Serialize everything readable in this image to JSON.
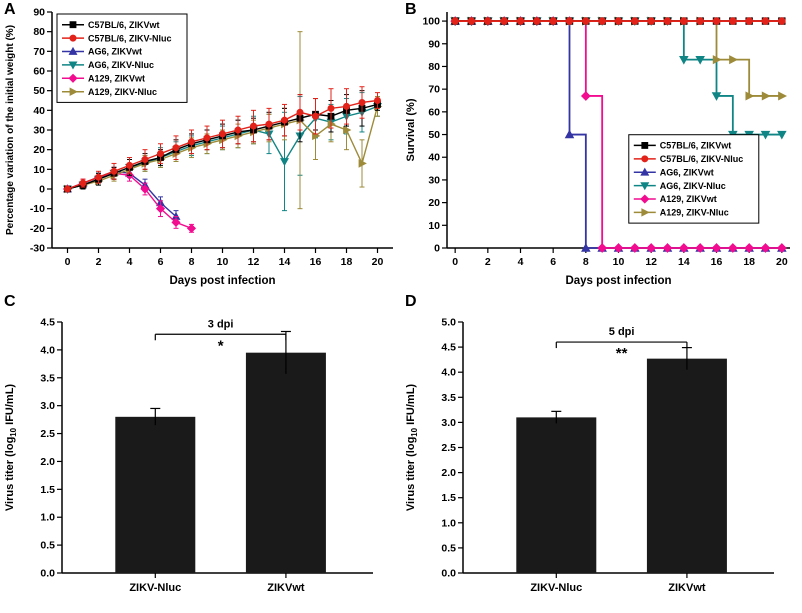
{
  "figure": {
    "panels": [
      {
        "label": "A"
      },
      {
        "label": "B"
      },
      {
        "label": "C"
      },
      {
        "label": "D"
      }
    ]
  },
  "chart_data": [
    {
      "id": "A",
      "type": "line",
      "xlabel": "Days post infection",
      "ylabel": "Percentage variation of the initial weight (%)",
      "xlim": [
        -1,
        21
      ],
      "ylim": [
        -30,
        90
      ],
      "xticks": [
        0,
        2,
        4,
        6,
        8,
        10,
        12,
        14,
        16,
        18,
        20
      ],
      "yticks": [
        -30,
        -20,
        -10,
        0,
        10,
        20,
        30,
        40,
        50,
        60,
        70,
        80,
        90
      ],
      "legend_position": "top-left",
      "series": [
        {
          "name": "C57BL/6, ZIKVwt",
          "color": "#000000",
          "marker": "square",
          "days": [
            0,
            1,
            2,
            3,
            4,
            5,
            6,
            7,
            8,
            9,
            10,
            11,
            12,
            13,
            14,
            15,
            16,
            17,
            18,
            19,
            20
          ],
          "values": [
            0,
            2,
            5,
            8,
            11,
            14,
            16,
            20,
            23,
            25,
            27,
            29,
            30,
            32,
            34,
            36,
            38,
            37,
            40,
            41,
            43
          ],
          "errors": [
            1,
            2,
            3,
            3,
            4,
            4,
            4,
            5,
            5,
            5,
            6,
            6,
            6,
            7,
            7,
            12,
            8,
            8,
            8,
            9,
            3
          ]
        },
        {
          "name": "C57BL/6, ZIKV-Nluc",
          "color": "#e2231a",
          "marker": "circle",
          "days": [
            0,
            1,
            2,
            3,
            4,
            5,
            6,
            7,
            8,
            9,
            10,
            11,
            12,
            13,
            14,
            15,
            16,
            17,
            18,
            19,
            20
          ],
          "values": [
            0,
            3,
            6,
            9,
            12,
            15,
            18,
            21,
            24,
            26,
            28,
            30,
            32,
            33,
            35,
            39,
            37,
            41,
            42,
            44,
            45
          ],
          "errors": [
            1,
            2,
            3,
            4,
            4,
            5,
            5,
            6,
            6,
            6,
            7,
            7,
            8,
            8,
            8,
            9,
            9,
            10,
            9,
            8,
            4
          ]
        },
        {
          "name": "AG6, ZIKVwt",
          "color": "#3434a4",
          "marker": "triangle-up",
          "days": [
            0,
            1,
            2,
            3,
            4,
            5,
            6,
            7
          ],
          "values": [
            0,
            3,
            6,
            9,
            8,
            2,
            -7,
            -14
          ],
          "errors": [
            1,
            1,
            2,
            2,
            2,
            3,
            3,
            3
          ]
        },
        {
          "name": "AG6, ZIKV-Nluc",
          "color": "#108585",
          "marker": "triangle-down",
          "days": [
            0,
            1,
            2,
            3,
            4,
            5,
            6,
            7,
            8,
            9,
            10,
            11,
            12,
            13,
            14,
            15,
            16,
            17,
            18,
            19,
            20
          ],
          "values": [
            0,
            2,
            5,
            8,
            11,
            13,
            16,
            19,
            22,
            24,
            26,
            28,
            30,
            28,
            14,
            27,
            36,
            34,
            37,
            39,
            42
          ],
          "errors": [
            1,
            2,
            3,
            3,
            4,
            4,
            5,
            5,
            5,
            6,
            6,
            7,
            7,
            10,
            25,
            20,
            10,
            9,
            9,
            10,
            5
          ]
        },
        {
          "name": "A129, ZIKVwt",
          "color": "#f20c8f",
          "marker": "diamond",
          "days": [
            0,
            1,
            2,
            3,
            4,
            5,
            6,
            7,
            8
          ],
          "values": [
            0,
            3,
            6,
            8,
            7,
            0,
            -10,
            -17,
            -20
          ],
          "errors": [
            1,
            2,
            2,
            3,
            3,
            3,
            4,
            3,
            2
          ]
        },
        {
          "name": "A129, ZIKV-Nluc",
          "color": "#9d8b3a",
          "marker": "triangle-right",
          "days": [
            0,
            1,
            2,
            3,
            4,
            5,
            6,
            7,
            8,
            9,
            10,
            11,
            12,
            13,
            14,
            15,
            16,
            17,
            18,
            19,
            20
          ],
          "values": [
            0,
            2,
            4,
            7,
            10,
            13,
            15,
            18,
            21,
            23,
            25,
            27,
            29,
            31,
            33,
            35,
            27,
            33,
            30,
            13,
            42
          ],
          "errors": [
            1,
            2,
            2,
            3,
            3,
            4,
            4,
            4,
            5,
            5,
            5,
            6,
            6,
            7,
            8,
            45,
            12,
            9,
            10,
            12,
            5
          ]
        }
      ]
    },
    {
      "id": "B",
      "type": "step",
      "xlabel": "Days post infection",
      "ylabel": "Survival (%)",
      "xlim": [
        -0.5,
        20.5
      ],
      "ylim": [
        0,
        104
      ],
      "xticks": [
        0,
        2,
        4,
        6,
        8,
        10,
        12,
        14,
        16,
        18,
        20
      ],
      "yticks": [
        0,
        10,
        20,
        30,
        40,
        50,
        60,
        70,
        80,
        90,
        100
      ],
      "legend_position": "bottom-right",
      "series": [
        {
          "name": "C57BL/6, ZIKVwt",
          "color": "#000000",
          "marker": "square",
          "days": [
            0,
            1,
            2,
            3,
            4,
            5,
            6,
            7,
            8,
            9,
            10,
            11,
            12,
            13,
            14,
            15,
            16,
            17,
            18,
            19,
            20
          ],
          "values": [
            100,
            100,
            100,
            100,
            100,
            100,
            100,
            100,
            100,
            100,
            100,
            100,
            100,
            100,
            100,
            100,
            100,
            100,
            100,
            100,
            100
          ]
        },
        {
          "name": "C57BL/6, ZIKV-Nluc",
          "color": "#e2231a",
          "marker": "circle",
          "days": [
            0,
            1,
            2,
            3,
            4,
            5,
            6,
            7,
            8,
            9,
            10,
            11,
            12,
            13,
            14,
            15,
            16,
            17,
            18,
            19,
            20
          ],
          "values": [
            100,
            100,
            100,
            100,
            100,
            100,
            100,
            100,
            100,
            100,
            100,
            100,
            100,
            100,
            100,
            100,
            100,
            100,
            100,
            100,
            100
          ]
        },
        {
          "name": "AG6, ZIKVwt",
          "color": "#3434a4",
          "marker": "triangle-up",
          "days": [
            0,
            1,
            2,
            3,
            4,
            5,
            6,
            7,
            8,
            9,
            10,
            11,
            12,
            13,
            14,
            15,
            16,
            17,
            18,
            19,
            20
          ],
          "values": [
            100,
            100,
            100,
            100,
            100,
            100,
            100,
            50,
            0,
            0,
            0,
            0,
            0,
            0,
            0,
            0,
            0,
            0,
            0,
            0,
            0
          ]
        },
        {
          "name": "AG6, ZIKV-Nluc",
          "color": "#108585",
          "marker": "triangle-down",
          "days": [
            0,
            1,
            2,
            3,
            4,
            5,
            6,
            7,
            8,
            9,
            10,
            11,
            12,
            13,
            14,
            15,
            16,
            17,
            18,
            19,
            20
          ],
          "values": [
            100,
            100,
            100,
            100,
            100,
            100,
            100,
            100,
            100,
            100,
            100,
            100,
            100,
            100,
            83,
            83,
            67,
            50,
            50,
            50,
            50
          ]
        },
        {
          "name": "A129, ZIKVwt",
          "color": "#f20c8f",
          "marker": "diamond",
          "days": [
            0,
            1,
            2,
            3,
            4,
            5,
            6,
            7,
            8,
            9,
            10,
            11,
            12,
            13,
            14,
            15,
            16,
            17,
            18,
            19,
            20
          ],
          "values": [
            100,
            100,
            100,
            100,
            100,
            100,
            100,
            100,
            67,
            0,
            0,
            0,
            0,
            0,
            0,
            0,
            0,
            0,
            0,
            0,
            0
          ]
        },
        {
          "name": "A129, ZIKV-Nluc",
          "color": "#9d8b3a",
          "marker": "triangle-right",
          "days": [
            0,
            1,
            2,
            3,
            4,
            5,
            6,
            7,
            8,
            9,
            10,
            11,
            12,
            13,
            14,
            15,
            16,
            17,
            18,
            19,
            20
          ],
          "values": [
            100,
            100,
            100,
            100,
            100,
            100,
            100,
            100,
            100,
            100,
            100,
            100,
            100,
            100,
            100,
            100,
            83,
            83,
            67,
            67,
            67
          ]
        }
      ]
    },
    {
      "id": "C",
      "type": "bar",
      "ylabel": "Virus titer (log10 IFU/mL)",
      "categories": [
        "ZIKV-Nluc",
        "ZIKVwt"
      ],
      "values": [
        2.8,
        3.95
      ],
      "errors": [
        0.15,
        0.38
      ],
      "ylim": [
        0,
        4.5
      ],
      "yticks": [
        0,
        0.5,
        1.0,
        1.5,
        2.0,
        2.5,
        3.0,
        3.5,
        4.0,
        4.5
      ],
      "annotation": "3 dpi",
      "significance": "*",
      "bracket_y": 4.28,
      "bar_color": "#1a1a1a"
    },
    {
      "id": "D",
      "type": "bar",
      "ylabel": "Virus titer (log10 IFU/mL)",
      "categories": [
        "ZIKV-Nluc",
        "ZIKVwt"
      ],
      "values": [
        3.1,
        4.27
      ],
      "errors": [
        0.12,
        0.22
      ],
      "ylim": [
        0,
        5.0
      ],
      "yticks": [
        0,
        0.5,
        1.0,
        1.5,
        2.0,
        2.5,
        3.0,
        3.5,
        4.0,
        4.5,
        5.0
      ],
      "annotation": "5 dpi",
      "significance": "**",
      "bracket_y": 4.6,
      "bar_color": "#1a1a1a"
    }
  ]
}
